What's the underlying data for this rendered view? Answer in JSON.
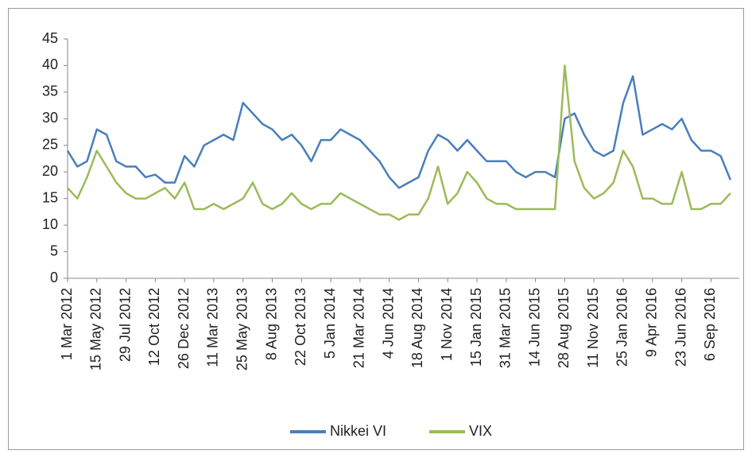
{
  "chart_data": {
    "type": "line",
    "categories": [
      "1 Mar 2012",
      null,
      null,
      "15 May 2012",
      null,
      null,
      "29 Jul 2012",
      null,
      null,
      "12 Oct 2012",
      null,
      null,
      "26 Dec 2012",
      null,
      null,
      "11 Mar 2013",
      null,
      null,
      "25 May 2013",
      null,
      null,
      "8 Aug 2013",
      null,
      null,
      "22 Oct 2013",
      null,
      null,
      "5 Jan 2014",
      null,
      null,
      "21 Mar 2014",
      null,
      null,
      "4 Jun 2014",
      null,
      null,
      "18 Aug 2014",
      null,
      null,
      "1 Nov 2014",
      null,
      null,
      "15 Jan 2015",
      null,
      null,
      "31 Mar 2015",
      null,
      null,
      "14 Jun 2015",
      null,
      null,
      "28 Aug 2015",
      null,
      null,
      "11 Nov 2015",
      null,
      null,
      "25 Jan 2016",
      null,
      null,
      "9 Apr 2016",
      null,
      null,
      "23 Jun 2016",
      null,
      null,
      "6 Sep 2016",
      null,
      null
    ],
    "series": [
      {
        "name": "Nikkei VI",
        "color": "#4a7ebb",
        "values": [
          24,
          21,
          22,
          28,
          27,
          22,
          21,
          21,
          19,
          19.5,
          18,
          18,
          23,
          21,
          25,
          26,
          27,
          26,
          33,
          31,
          29,
          28,
          26,
          27,
          25,
          22,
          26,
          26,
          28,
          27,
          26,
          24,
          22,
          19,
          17,
          18,
          19,
          24,
          27,
          26,
          24,
          26,
          24,
          22,
          22,
          22,
          20,
          19,
          20,
          20,
          19,
          30,
          31,
          27,
          24,
          23,
          24,
          33,
          38,
          27,
          28,
          29,
          28,
          30,
          26,
          24,
          24,
          23,
          18.5
        ]
      },
      {
        "name": "VIX",
        "color": "#9bbb59",
        "values": [
          17,
          15,
          19,
          24,
          21,
          18,
          16,
          15,
          15,
          16,
          17,
          15,
          18,
          13,
          13,
          14,
          13,
          14,
          15,
          18,
          14,
          13,
          14,
          16,
          14,
          13,
          14,
          14,
          16,
          15,
          14,
          13,
          12,
          12,
          11,
          12,
          12,
          15,
          21,
          14,
          16,
          20,
          18,
          15,
          14,
          14,
          13,
          13,
          13,
          13,
          13,
          40,
          22,
          17,
          15,
          16,
          18,
          24,
          21,
          15,
          15,
          14,
          14,
          20,
          13,
          13,
          14,
          14,
          16
        ]
      }
    ],
    "ylim": [
      0,
      45
    ],
    "yticks": [
      0,
      5,
      10,
      15,
      20,
      25,
      30,
      35,
      40,
      45
    ],
    "grid": false,
    "legend": "bottom"
  }
}
